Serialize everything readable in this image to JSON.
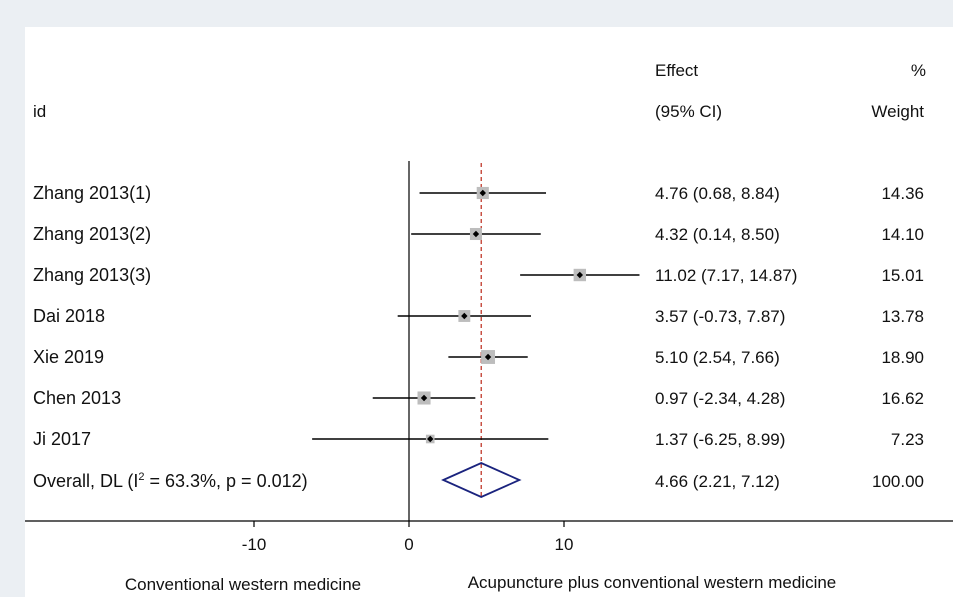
{
  "chart_data": {
    "type": "forest",
    "header": {
      "id_label": "id",
      "effect_label": "Effect",
      "ci_label": "(95% CI)",
      "pct_label": "%",
      "weight_label": "Weight"
    },
    "studies": [
      {
        "label": "Zhang 2013(1)",
        "effect": 4.76,
        "lower": 0.68,
        "upper": 8.84,
        "weight": 14.36,
        "effect_text": "4.76 (0.68, 8.84)",
        "weight_text": "14.36"
      },
      {
        "label": "Zhang 2013(2)",
        "effect": 4.32,
        "lower": 0.14,
        "upper": 8.5,
        "weight": 14.1,
        "effect_text": "4.32 (0.14, 8.50)",
        "weight_text": "14.10"
      },
      {
        "label": "Zhang 2013(3)",
        "effect": 11.02,
        "lower": 7.17,
        "upper": 14.87,
        "weight": 15.01,
        "effect_text": "11.02 (7.17, 14.87)",
        "weight_text": "15.01"
      },
      {
        "label": "Dai 2018",
        "effect": 3.57,
        "lower": -0.73,
        "upper": 7.87,
        "weight": 13.78,
        "effect_text": "3.57 (-0.73, 7.87)",
        "weight_text": "13.78"
      },
      {
        "label": "Xie 2019",
        "effect": 5.1,
        "lower": 2.54,
        "upper": 7.66,
        "weight": 18.9,
        "effect_text": "5.10 (2.54, 7.66)",
        "weight_text": "18.90"
      },
      {
        "label": "Chen 2013",
        "effect": 0.97,
        "lower": -2.34,
        "upper": 4.28,
        "weight": 16.62,
        "effect_text": "0.97 (-2.34, 4.28)",
        "weight_text": "16.62"
      },
      {
        "label": "Ji 2017",
        "effect": 1.37,
        "lower": -6.25,
        "upper": 8.99,
        "weight": 7.23,
        "effect_text": "1.37 (-6.25, 8.99)",
        "weight_text": "7.23"
      }
    ],
    "overall": {
      "label_pre": "Overall, DL (I",
      "label_sup": "2",
      "label_post": " = 63.3%, p = 0.012)",
      "effect": 4.66,
      "lower": 2.21,
      "upper": 7.12,
      "effect_text": "4.66 (2.21, 7.12)",
      "weight_text": "100.00"
    },
    "x_ticks": [
      -10,
      0,
      10
    ],
    "x_tick_labels": [
      "-10",
      "0",
      "10"
    ],
    "xlim": [
      -15,
      15
    ],
    "null_line": 0,
    "favours_left": "Conventional western medicine",
    "favours_right": "Acupuncture plus conventional western medicine",
    "colors": {
      "ci_line": "#000000",
      "box": "#bdbdbd",
      "point": "#000000",
      "overall_line": "#c0392b",
      "diamond": "#1a237e",
      "background": "#ebeff3"
    }
  }
}
